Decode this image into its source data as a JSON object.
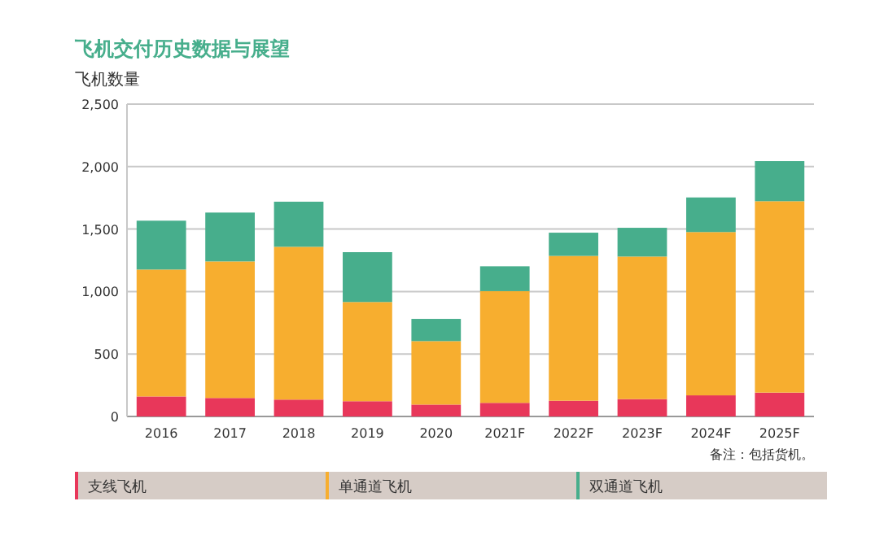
{
  "chart_data": {
    "type": "bar",
    "stacked": true,
    "title": "飞机交付历史数据与展望",
    "ylabel": "飞机数量",
    "categories": [
      "2016",
      "2017",
      "2018",
      "2019",
      "2020",
      "2021F",
      "2022F",
      "2023F",
      "2024F",
      "2025F"
    ],
    "series": [
      {
        "name": "支线飞机",
        "color": "#e8375a",
        "values": [
          160,
          148,
          135,
          122,
          95,
          109,
          126,
          139,
          169,
          191
        ]
      },
      {
        "name": "单通道飞机",
        "color": "#f7ae2f",
        "values": [
          1016,
          1093,
          1223,
          794,
          508,
          894,
          1159,
          1141,
          1307,
          1532
        ]
      },
      {
        "name": "双通道飞机",
        "color": "#47ae8c",
        "values": [
          391,
          391,
          361,
          399,
          178,
          199,
          186,
          230,
          277,
          321
        ]
      }
    ],
    "ylim": [
      0,
      2500
    ],
    "yticks": [
      {
        "value": 0,
        "label": "0"
      },
      {
        "value": 500,
        "label": "500"
      },
      {
        "value": 1000,
        "label": "1,000"
      },
      {
        "value": 1500,
        "label": "1,500"
      },
      {
        "value": 2000,
        "label": "2,000"
      },
      {
        "value": 2500,
        "label": "2,500"
      }
    ],
    "grid": "y",
    "legend": "bottom",
    "annotations": [
      "备注：包括货机。"
    ]
  }
}
